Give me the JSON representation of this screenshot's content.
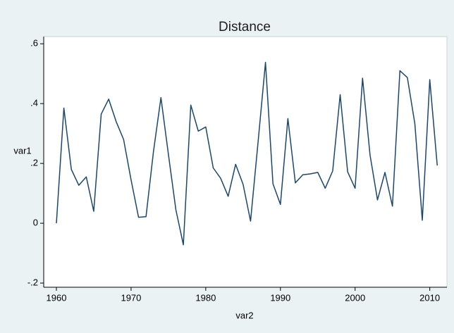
{
  "chart_data": {
    "type": "line",
    "title": "Distance",
    "x_label": "var2",
    "y_label": "var1",
    "x": [
      1960,
      1961,
      1962,
      1963,
      1964,
      1965,
      1966,
      1967,
      1968,
      1969,
      1970,
      1971,
      1972,
      1973,
      1974,
      1975,
      1976,
      1977,
      1978,
      1979,
      1980,
      1981,
      1982,
      1983,
      1984,
      1985,
      1986,
      1987,
      1988,
      1989,
      1990,
      1991,
      1992,
      1993,
      1994,
      1995,
      1996,
      1997,
      1998,
      1999,
      2000,
      2001,
      2002,
      2003,
      2004,
      2005,
      2006,
      2007,
      2008,
      2009,
      2010,
      2011
    ],
    "series": [
      {
        "name": "var1",
        "color": "#1a476f",
        "values": [
          0.0,
          0.385,
          0.18,
          0.127,
          0.155,
          0.04,
          0.365,
          0.415,
          0.34,
          0.28,
          0.145,
          0.02,
          0.022,
          0.24,
          0.42,
          0.23,
          0.045,
          -0.072,
          0.395,
          0.308,
          0.322,
          0.185,
          0.15,
          0.09,
          0.197,
          0.13,
          0.007,
          0.27,
          0.538,
          0.132,
          0.063,
          0.35,
          0.135,
          0.162,
          0.165,
          0.17,
          0.117,
          0.175,
          0.43,
          0.172,
          0.117,
          0.485,
          0.228,
          0.078,
          0.17,
          0.057,
          0.51,
          0.487,
          0.333,
          0.01,
          0.48,
          0.193
        ]
      }
    ],
    "xlim": [
      1958.3,
      2012.3
    ],
    "xticks": [
      1960,
      1970,
      1980,
      1990,
      2000,
      2010
    ],
    "ylim": [
      -0.214,
      0.624
    ],
    "yticks": [
      {
        "value": -0.2,
        "label": "-.2"
      },
      0,
      {
        "value": 0.2,
        "label": ".2"
      },
      {
        "value": 0.4,
        "label": ".4"
      },
      {
        "value": 0.6,
        "label": ".6"
      }
    ],
    "grid": false
  }
}
